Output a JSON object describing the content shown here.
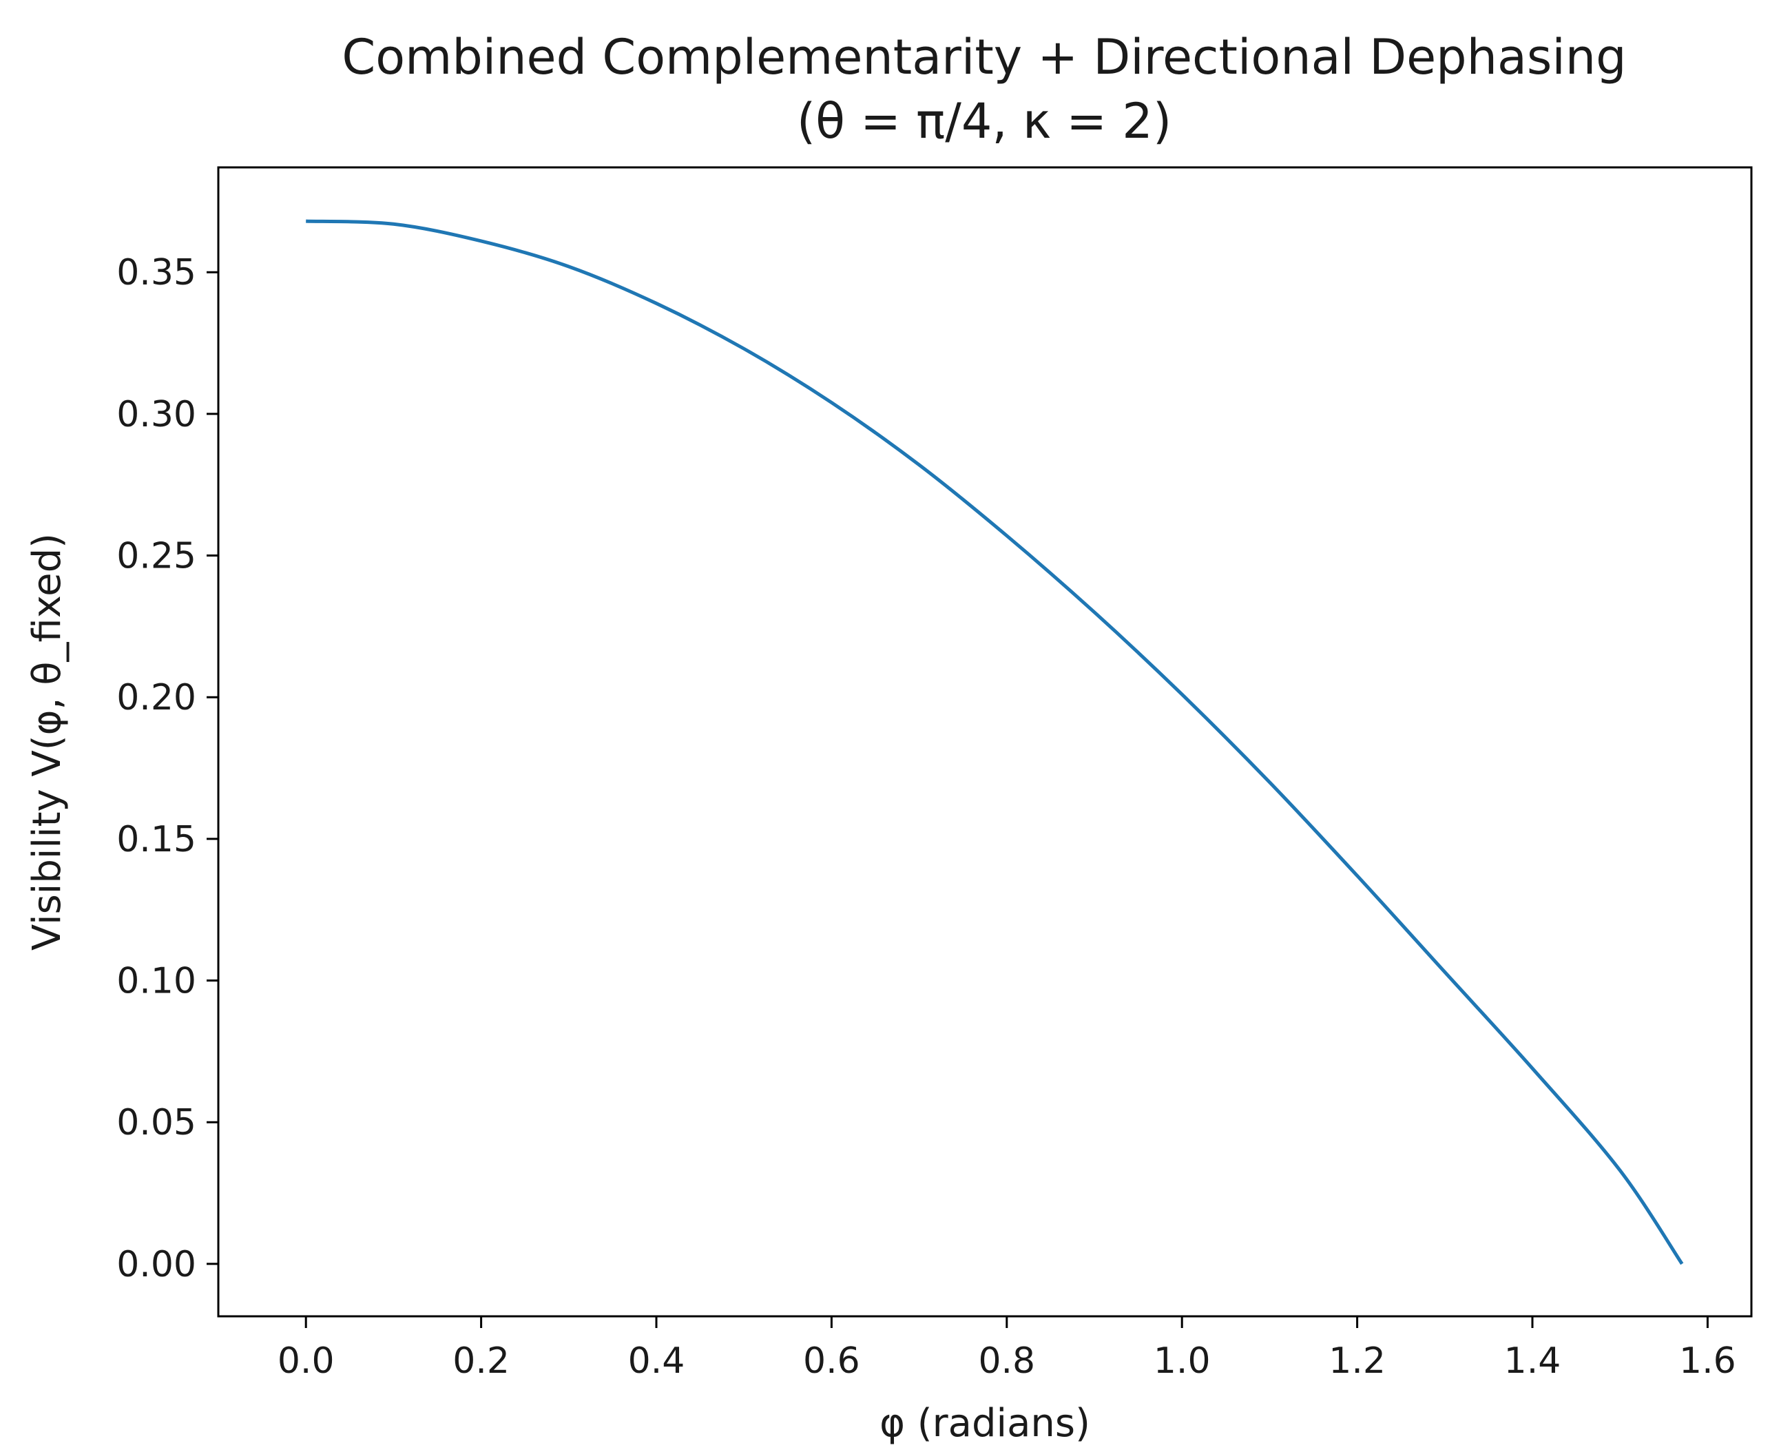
{
  "chart_data": {
    "type": "line",
    "title": "Combined Complementarity + Directional Dephasing",
    "subtitle": "(θ = π/4, κ = 2)",
    "xlabel": "φ (radians)",
    "ylabel": "Visibility V(φ, θ_fixed)",
    "xlim": [
      -0.1,
      1.65
    ],
    "ylim": [
      -0.0185,
      0.387
    ],
    "x_ticks": [
      0.0,
      0.2,
      0.4,
      0.6,
      0.8,
      1.0,
      1.2,
      1.4,
      1.6
    ],
    "x_tick_labels": [
      "0.0",
      "0.2",
      "0.4",
      "0.6",
      "0.8",
      "1.0",
      "1.2",
      "1.4",
      "1.6"
    ],
    "y_ticks": [
      0.0,
      0.05,
      0.1,
      0.15,
      0.2,
      0.25,
      0.3,
      0.35
    ],
    "y_tick_labels": [
      "0.00",
      "0.05",
      "0.10",
      "0.15",
      "0.20",
      "0.25",
      "0.30",
      "0.35"
    ],
    "grid": false,
    "legend": "none",
    "line_color": "#1f77b4",
    "series": [
      {
        "x": [
          0.0,
          0.1,
          0.2,
          0.3,
          0.4,
          0.5,
          0.6,
          0.7,
          0.8,
          0.9,
          1.0,
          1.1,
          1.2,
          1.3,
          1.4,
          1.5,
          1.5708
        ],
        "values": [
          0.368,
          0.367,
          0.361,
          0.352,
          0.339,
          0.323,
          0.304,
          0.282,
          0.257,
          0.23,
          0.201,
          0.17,
          0.137,
          0.103,
          0.069,
          0.033,
          0.0
        ]
      }
    ]
  }
}
